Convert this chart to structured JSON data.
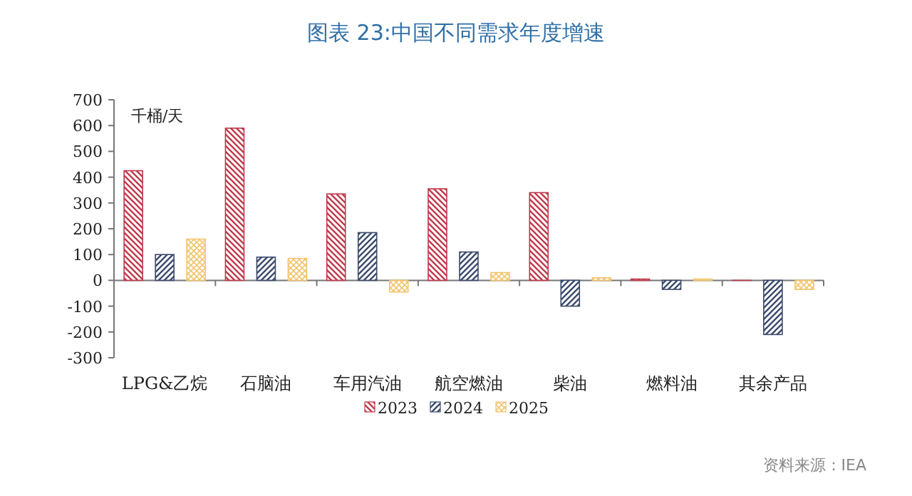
{
  "chart_data": {
    "type": "bar",
    "title": "图表  23:中国不同需求年度增速",
    "ylabel": "千桶/天",
    "categories": [
      "LPG&乙烷",
      "石脑油",
      "车用汽油",
      "航空燃油",
      "柴油",
      "燃料油",
      "其余产品"
    ],
    "series": [
      {
        "name": "2023",
        "color": "#c0394b",
        "values": [
          425,
          590,
          335,
          355,
          340,
          5,
          0
        ]
      },
      {
        "name": "2024",
        "color": "#3b4a6b",
        "values": [
          100,
          90,
          185,
          110,
          -100,
          -35,
          -210
        ]
      },
      {
        "name": "2025",
        "color": "#f2c46d",
        "values": [
          160,
          85,
          -45,
          30,
          10,
          5,
          -35
        ]
      }
    ],
    "ylim": [
      -300,
      700
    ],
    "yticks": [
      -300,
      -200,
      -100,
      0,
      100,
      200,
      300,
      400,
      500,
      600,
      700
    ],
    "legend": "bottom",
    "annotations": [
      "资料来源：IEA"
    ]
  }
}
